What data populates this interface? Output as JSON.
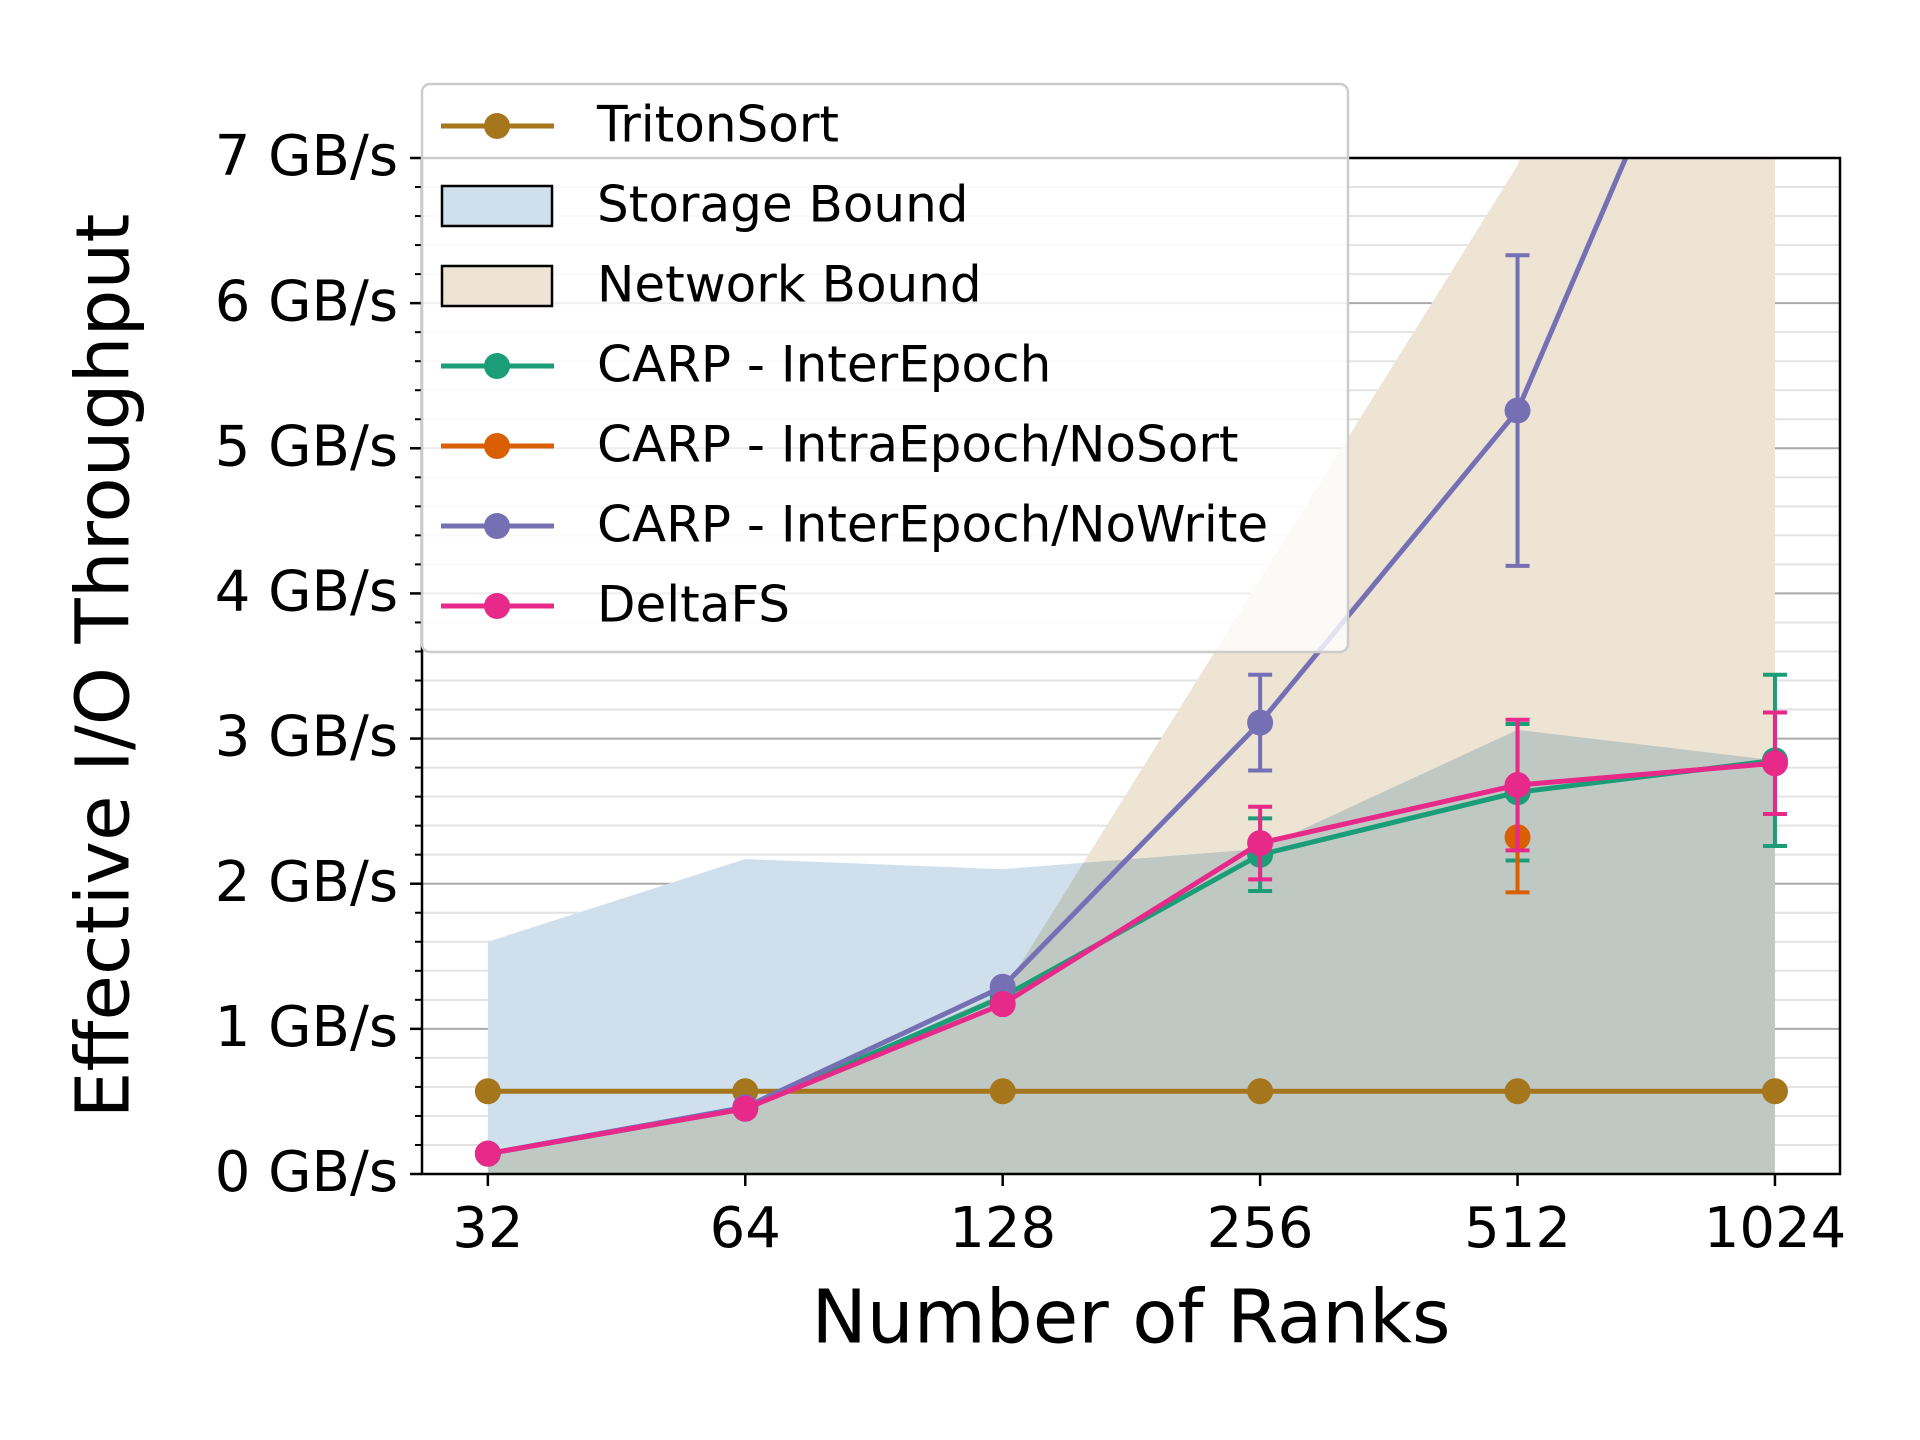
{
  "chart_data": {
    "type": "line",
    "x_label": "Number of Ranks",
    "y_label": "Effective I/O Throughput",
    "x": [
      32,
      64,
      128,
      256,
      512,
      1024
    ],
    "xscale": "log2",
    "xlim": [
      26.8,
      1220
    ],
    "xticks": [
      32,
      64,
      128,
      256,
      512,
      1024
    ],
    "ylim": [
      0,
      7
    ],
    "yticks": [
      {
        "value": 0,
        "label": "0 GB/s"
      },
      {
        "value": 1,
        "label": "1 GB/s"
      },
      {
        "value": 2,
        "label": "2 GB/s"
      },
      {
        "value": 3,
        "label": "3 GB/s"
      },
      {
        "value": 4,
        "label": "4 GB/s"
      },
      {
        "value": 5,
        "label": "5 GB/s"
      },
      {
        "value": 6,
        "label": "6 GB/s"
      },
      {
        "value": 7,
        "label": "7 GB/s"
      }
    ],
    "yminorticks": [
      0.2,
      0.4,
      0.6,
      0.8,
      1.2,
      1.4,
      1.6,
      1.8,
      2.2,
      2.4,
      2.6,
      2.8,
      3.2,
      3.4,
      3.6,
      3.8,
      4.2,
      4.4,
      4.6,
      4.8,
      5.2,
      5.4,
      5.6,
      5.8,
      6.2,
      6.4,
      6.6,
      6.8
    ],
    "grid": true,
    "legend": "upper left",
    "series": [
      {
        "name": "TritonSort",
        "style": "line",
        "color": "#a6761d",
        "values": [
          0.57,
          0.57,
          0.57,
          0.57,
          0.57,
          0.57
        ]
      },
      {
        "name": "Storage Bound",
        "style": "area",
        "color": "#cfe0ec",
        "values": [
          1.6,
          2.17,
          2.1,
          2.24,
          3.06,
          2.85
        ]
      },
      {
        "name": "Network Bound",
        "style": "area",
        "color": "#ede4d4",
        "values": [
          0.15,
          0.45,
          1.25,
          4.1,
          6.95,
          12
        ]
      },
      {
        "name": "CARP - InterEpoch",
        "style": "line",
        "color": "#1b9e77",
        "values": [
          0.14,
          0.45,
          1.22,
          2.2,
          2.63,
          2.85
        ],
        "errors": [
          null,
          null,
          null,
          0.25,
          0.47,
          0.59
        ]
      },
      {
        "name": "CARP - IntraEpoch/NoSort",
        "style": "line",
        "color": "#d95f02",
        "values": [
          null,
          null,
          null,
          null,
          2.32,
          null
        ],
        "errors": [
          null,
          null,
          null,
          null,
          0.38,
          null
        ]
      },
      {
        "name": "CARP - InterEpoch/NoWrite",
        "style": "line",
        "color": "#7570b3",
        "values": [
          0.14,
          0.46,
          1.29,
          3.11,
          5.26,
          9.4
        ],
        "errors": [
          null,
          null,
          null,
          0.33,
          1.07,
          null
        ]
      },
      {
        "name": "DeltaFS",
        "style": "line",
        "color": "#e7298a",
        "values": [
          0.14,
          0.45,
          1.17,
          2.28,
          2.68,
          2.83
        ],
        "errors": [
          null,
          null,
          null,
          0.25,
          0.45,
          0.35
        ]
      }
    ]
  }
}
